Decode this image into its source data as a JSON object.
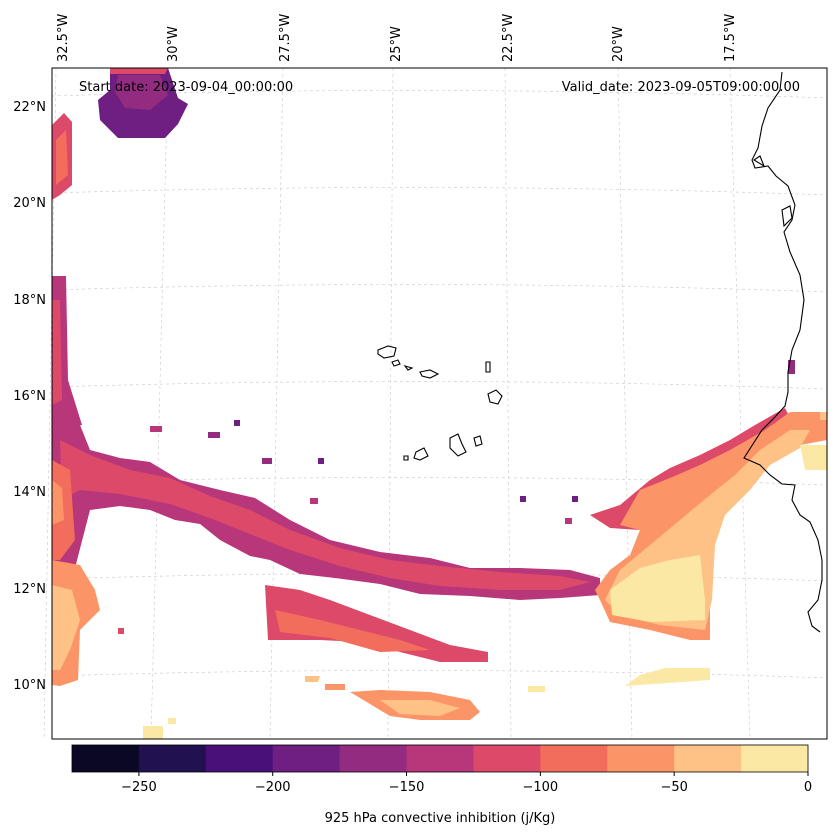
{
  "annotations": {
    "start_date": "Start date: 2023-09-04_00:00:00",
    "valid_date": "Valid_date: 2023-09-05T09:00:00.00"
  },
  "lon_labels": [
    "32.5°W",
    "30°W",
    "27.5°W",
    "25°W",
    "22.5°W",
    "20°W",
    "17.5°W"
  ],
  "lat_labels": [
    "22°N",
    "20°N",
    "18°N",
    "16°N",
    "14°N",
    "12°N",
    "10°N"
  ],
  "colorbar": {
    "label": "925 hPa convective inhibition (j/Kg)",
    "ticks": [
      "−250",
      "−200",
      "−150",
      "−100",
      "−50",
      "0"
    ],
    "tick_values": [
      -250,
      -200,
      -150,
      -100,
      -50,
      0
    ],
    "levels": [
      -275,
      -250,
      -225,
      -200,
      -175,
      -150,
      -125,
      -100,
      -75,
      -50,
      -25,
      0
    ],
    "colors": [
      "#0b0825",
      "#221150",
      "#4a1079",
      "#6f1f81",
      "#932b80",
      "#b8367a",
      "#dd4a69",
      "#f26d5b",
      "#fb9467",
      "#fec287",
      "#fce8a5"
    ]
  }
}
